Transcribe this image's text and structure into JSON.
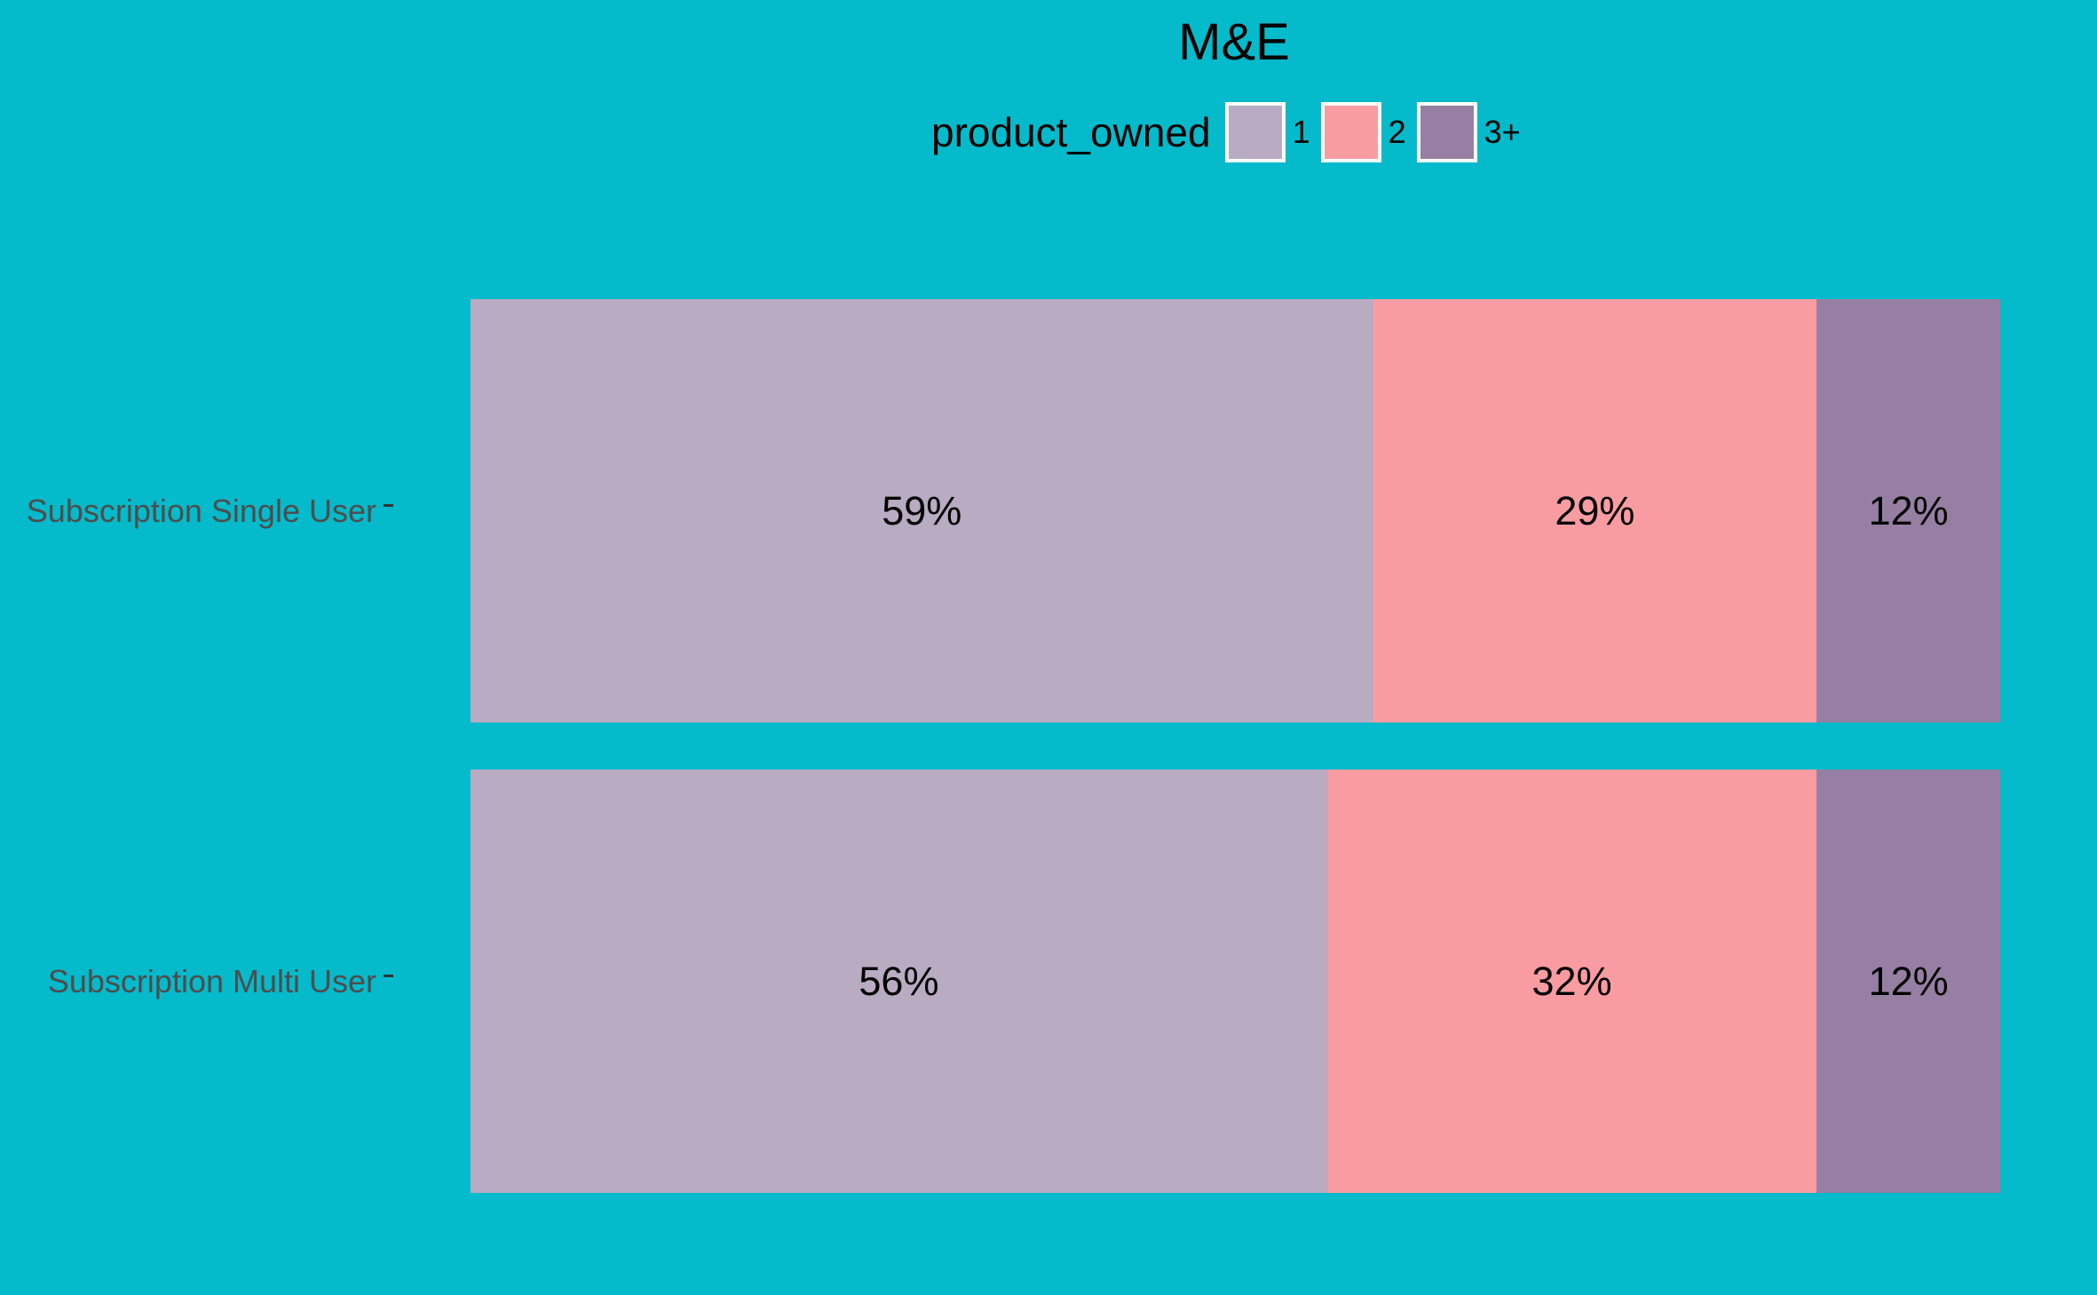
{
  "chart_data": {
    "type": "bar",
    "orientation": "horizontal",
    "stacked": true,
    "title": "M&E",
    "legend": {
      "title": "product_owned",
      "placement": "top"
    },
    "categories": [
      "Subscription Single User",
      "Subscription Multi User"
    ],
    "series": [
      {
        "name": "1",
        "color": "#B9ABC2",
        "values": [
          59,
          56
        ],
        "labels": [
          "59%",
          "56%"
        ]
      },
      {
        "name": "2",
        "color": "#F99CA2",
        "values": [
          29,
          32
        ],
        "labels": [
          "29%",
          "32%"
        ]
      },
      {
        "name": "3+",
        "color": "#967FA3",
        "values": [
          12,
          12
        ],
        "labels": [
          "12%",
          "12%"
        ]
      }
    ],
    "xlim": [
      0,
      100
    ],
    "xlabel": "",
    "ylabel": "",
    "grid": false,
    "background_color": "#05BACA"
  }
}
